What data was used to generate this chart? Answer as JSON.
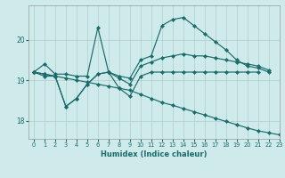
{
  "xlabel": "Humidex (Indice chaleur)",
  "bg_color": "#ceeaea",
  "grid_color": "#add0d0",
  "line_color": "#1a6b6b",
  "xlim": [
    -0.5,
    23
  ],
  "ylim": [
    17.55,
    20.85
  ],
  "yticks": [
    18,
    19,
    20
  ],
  "xticks": [
    0,
    1,
    2,
    3,
    4,
    5,
    6,
    7,
    8,
    9,
    10,
    11,
    12,
    13,
    14,
    15,
    16,
    17,
    18,
    19,
    20,
    21,
    22,
    23
  ],
  "series": [
    {
      "x": [
        0,
        1,
        2,
        3,
        4,
        5,
        6,
        7,
        8,
        9,
        10,
        11,
        12,
        13,
        14,
        15,
        16,
        17,
        18,
        19,
        20,
        21,
        22
      ],
      "y": [
        19.2,
        19.4,
        19.15,
        19.15,
        19.1,
        19.1,
        20.3,
        19.2,
        19.1,
        19.05,
        19.5,
        19.6,
        20.35,
        20.5,
        20.55,
        20.35,
        20.15,
        19.95,
        19.75,
        19.5,
        19.35,
        19.3,
        19.2
      ]
    },
    {
      "x": [
        0,
        1,
        2,
        3,
        4,
        5,
        6,
        7,
        8,
        9,
        10,
        11,
        12,
        13,
        14,
        15,
        16,
        17,
        18,
        19,
        20,
        21
      ],
      "y": [
        19.2,
        19.1,
        19.1,
        18.35,
        18.55,
        18.9,
        19.15,
        19.2,
        18.8,
        18.6,
        19.1,
        19.2,
        19.2,
        19.2,
        19.2,
        19.2,
        19.2,
        19.2,
        19.2,
        19.2,
        19.2,
        19.2
      ]
    },
    {
      "x": [
        0,
        1,
        2,
        3,
        4,
        5,
        6,
        7,
        8,
        9,
        10,
        11,
        12,
        13,
        14,
        15,
        16,
        17,
        18,
        19,
        20,
        21,
        22
      ],
      "y": [
        19.2,
        19.15,
        19.1,
        18.35,
        18.55,
        18.9,
        19.15,
        19.2,
        19.05,
        18.9,
        19.35,
        19.45,
        19.55,
        19.6,
        19.65,
        19.6,
        19.6,
        19.55,
        19.5,
        19.45,
        19.4,
        19.35,
        19.25
      ]
    },
    {
      "x": [
        0,
        1,
        2,
        3,
        4,
        5,
        6,
        7,
        8,
        9,
        10,
        11,
        12,
        13,
        14,
        15,
        16,
        17,
        18,
        19,
        20,
        21,
        22,
        23
      ],
      "y": [
        19.2,
        19.15,
        19.1,
        19.05,
        19.0,
        18.95,
        18.9,
        18.85,
        18.8,
        18.75,
        18.65,
        18.55,
        18.45,
        18.38,
        18.3,
        18.22,
        18.14,
        18.06,
        17.98,
        17.9,
        17.82,
        17.75,
        17.7,
        17.65
      ]
    }
  ]
}
